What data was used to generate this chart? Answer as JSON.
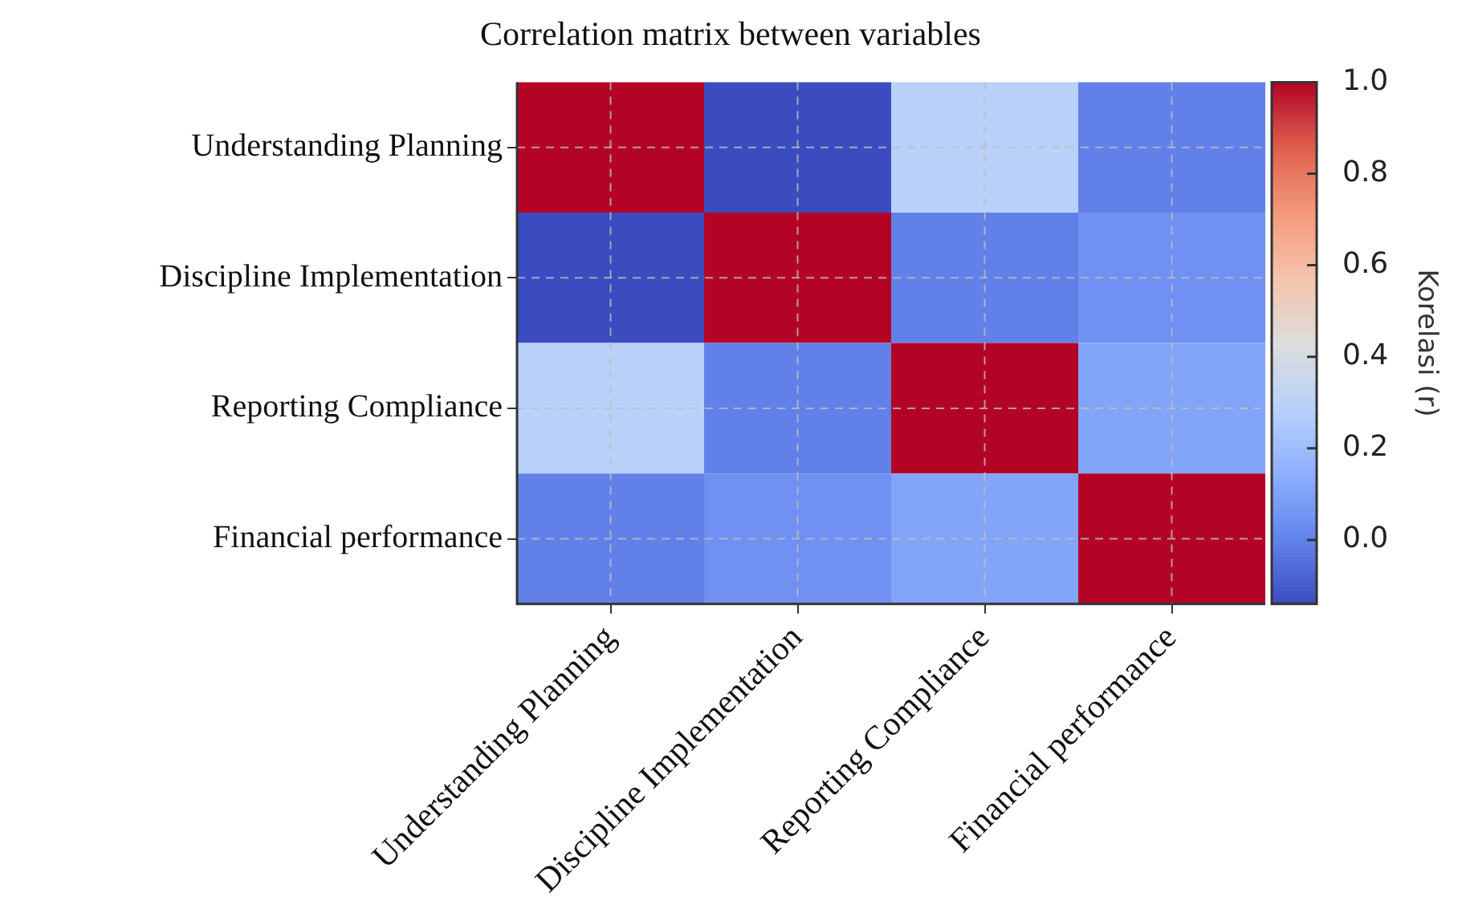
{
  "chart_data": {
    "type": "heatmap",
    "title": "Correlation matrix between variables",
    "categories": [
      "Understanding Planning",
      "Discipline Implementation",
      "Reporting Compliance",
      "Financial performance"
    ],
    "y_categories": [
      "Understanding Planning",
      "Discipline Implementation",
      "Reporting Compliance",
      "Financial performance"
    ],
    "cells": [
      [
        1.0,
        -0.14,
        0.29,
        0.0
      ],
      [
        -0.14,
        1.0,
        0.0,
        0.05
      ],
      [
        0.29,
        0.0,
        1.0,
        0.11
      ],
      [
        0.0,
        0.05,
        0.11,
        1.0
      ]
    ],
    "clim": [
      -0.14,
      1.0
    ],
    "cticks": [
      {
        "value": 0,
        "label": "0.0"
      },
      {
        "value": 0.2,
        "label": "0.2"
      },
      {
        "value": 0.4,
        "label": "0.4"
      },
      {
        "value": 0.6,
        "label": "0.6"
      },
      {
        "value": 0.8,
        "label": "0.8"
      },
      {
        "value": 1,
        "label": "1.0"
      }
    ],
    "clabel": "Korelasi (r)",
    "grid": true
  }
}
